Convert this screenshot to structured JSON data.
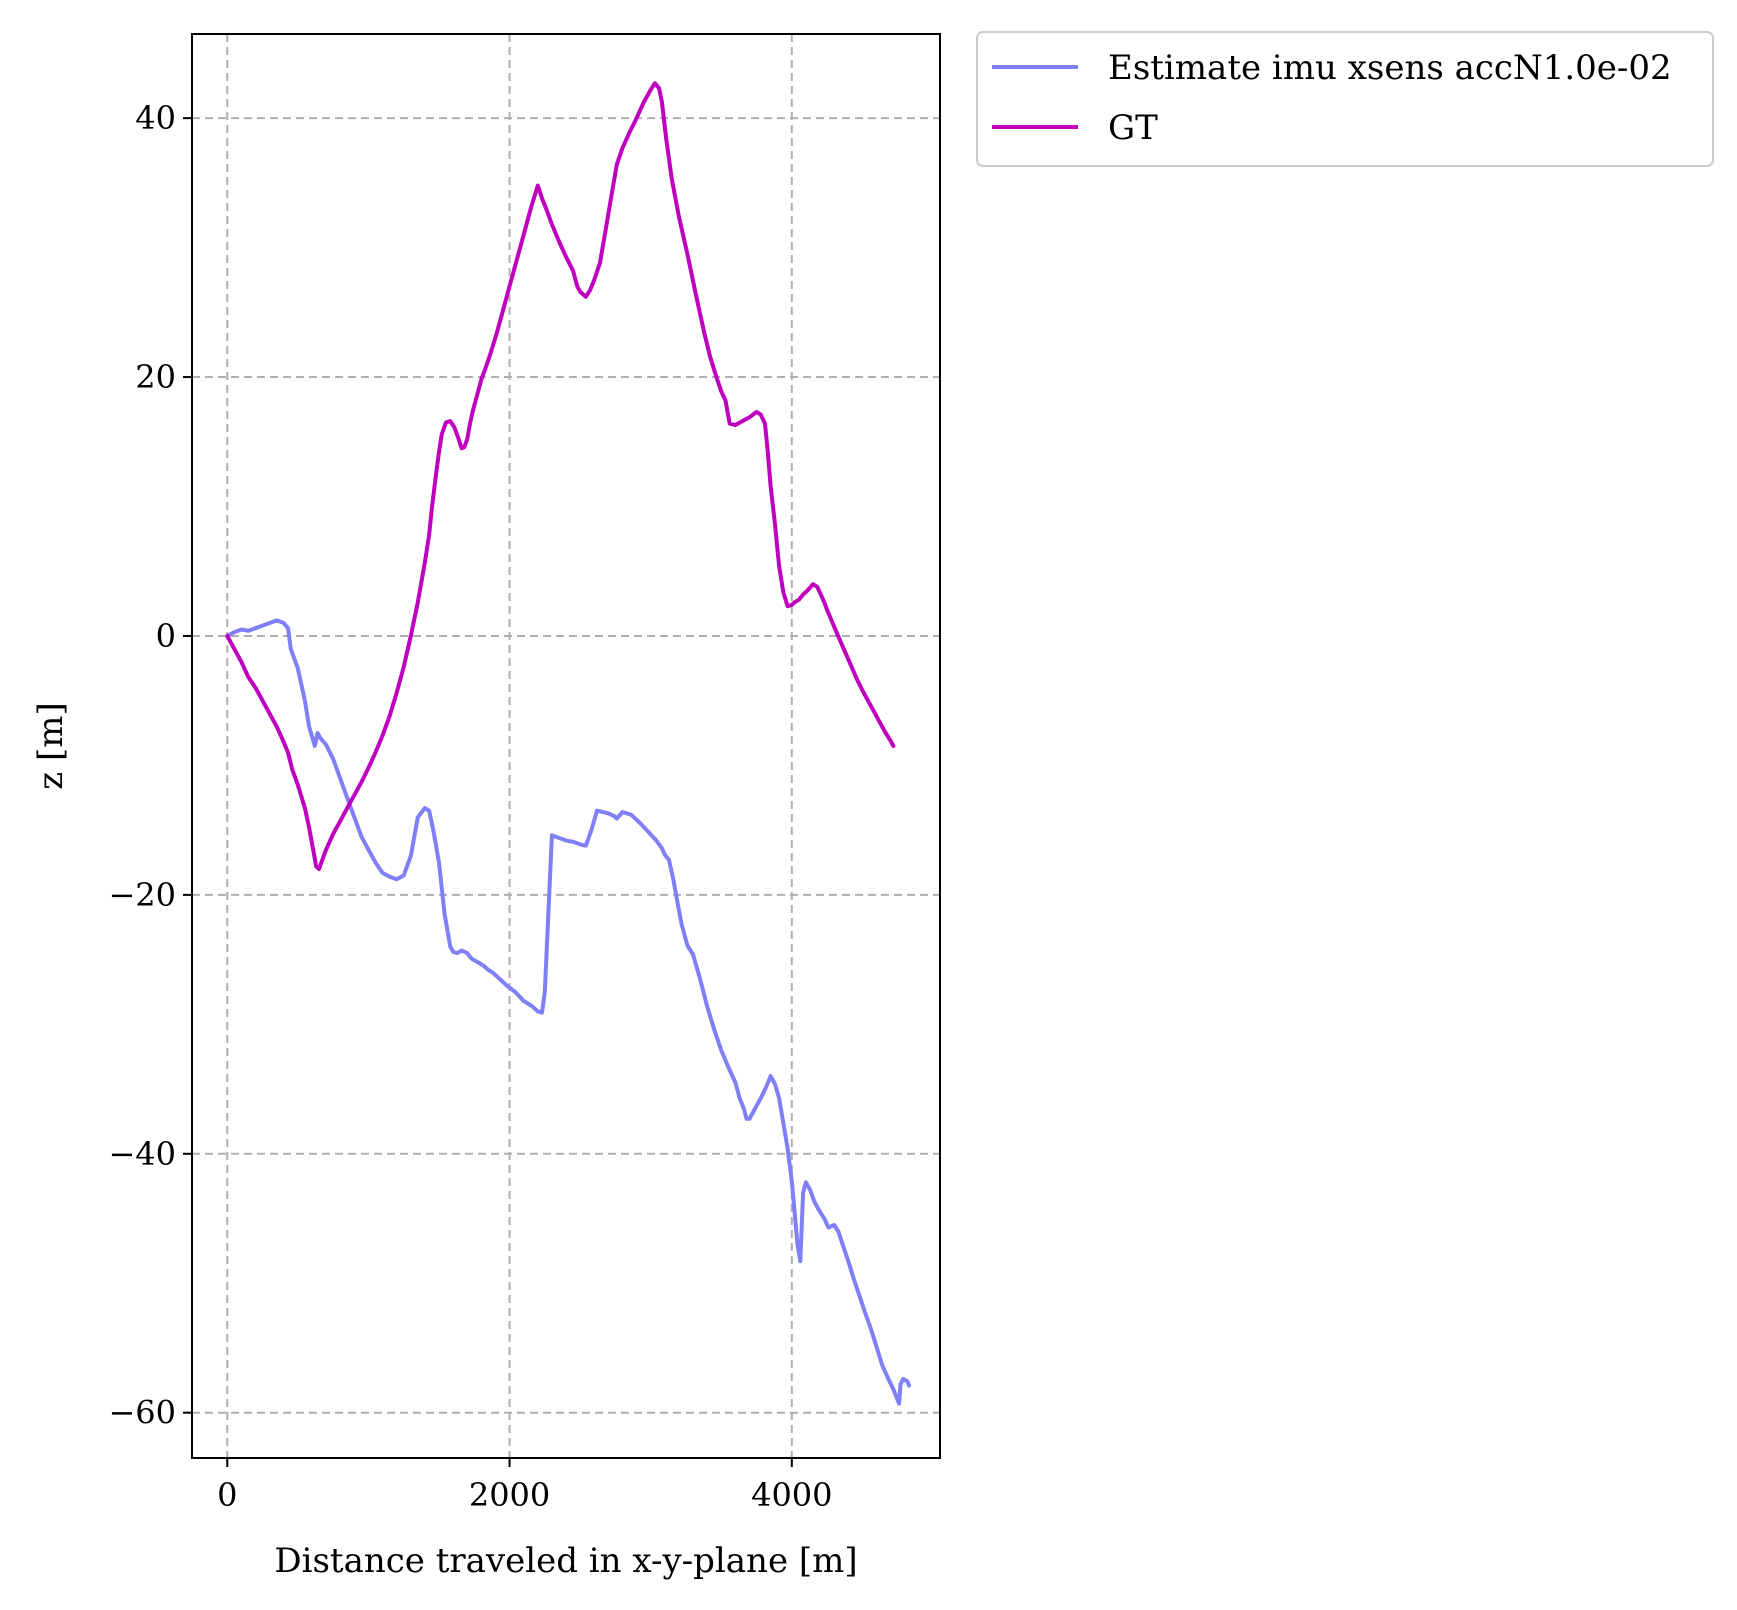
{
  "chart_data": {
    "type": "line",
    "title": "",
    "xlabel": "Distance traveled in x-y-plane [m]",
    "ylabel": "z [m]",
    "xlim": [
      -250,
      5050
    ],
    "ylim": [
      -63.5,
      46.5
    ],
    "xticks": [
      0,
      2000,
      4000
    ],
    "yticks": [
      40,
      20,
      0,
      -20,
      -40,
      -60
    ],
    "xtick_labels": [
      "0",
      "2000",
      "4000"
    ],
    "ytick_labels": [
      "40",
      "20",
      "0",
      "−20",
      "−40",
      "−60"
    ],
    "grid": true,
    "legend_position": "outside-top-right",
    "series": [
      {
        "name": "Estimate imu xsens accN1.0e-02",
        "color": "#7f7ff7",
        "x": [
          0,
          50,
          100,
          150,
          200,
          250,
          300,
          350,
          400,
          430,
          450,
          500,
          550,
          580,
          620,
          640,
          660,
          700,
          750,
          800,
          850,
          900,
          950,
          1000,
          1050,
          1100,
          1150,
          1200,
          1250,
          1300,
          1350,
          1400,
          1430,
          1460,
          1500,
          1540,
          1580,
          1600,
          1630,
          1660,
          1680,
          1700,
          1720,
          1740,
          1760,
          1790,
          1820,
          1850,
          1880,
          1920,
          1980,
          2040,
          2100,
          2160,
          2200,
          2230,
          2250,
          2300,
          2350,
          2400,
          2450,
          2500,
          2540,
          2560,
          2580,
          2620,
          2660,
          2700,
          2740,
          2760,
          2800,
          2860,
          2920,
          2980,
          3040,
          3080,
          3100,
          3130,
          3160,
          3190,
          3220,
          3260,
          3300,
          3350,
          3400,
          3450,
          3500,
          3550,
          3600,
          3630,
          3660,
          3680,
          3700,
          3740,
          3780,
          3820,
          3850,
          3880,
          3910,
          3940,
          3970,
          4000,
          4020,
          4040,
          4060,
          4080,
          4100,
          4130,
          4160,
          4190,
          4230,
          4260,
          4300,
          4330,
          4360,
          4400,
          4440,
          4480,
          4520,
          4560,
          4600,
          4640,
          4680,
          4720,
          4760,
          4770,
          4790,
          4820,
          4830
        ],
        "y": [
          0,
          0.3,
          0.5,
          0.4,
          0.6,
          0.8,
          1.0,
          1.2,
          1.0,
          0.6,
          -1.0,
          -2.5,
          -5.0,
          -7.0,
          -8.5,
          -7.5,
          -7.9,
          -8.4,
          -9.5,
          -11.0,
          -12.5,
          -14.0,
          -15.5,
          -16.5,
          -17.5,
          -18.3,
          -18.6,
          -18.8,
          -18.5,
          -17.0,
          -14.0,
          -13.3,
          -13.5,
          -15.0,
          -17.5,
          -21.5,
          -24.0,
          -24.4,
          -24.5,
          -24.3,
          -24.4,
          -24.5,
          -24.8,
          -25.0,
          -25.1,
          -25.3,
          -25.5,
          -25.8,
          -26.0,
          -26.4,
          -27.0,
          -27.5,
          -28.2,
          -28.6,
          -29.0,
          -29.1,
          -27.5,
          -15.4,
          -15.6,
          -15.8,
          -15.9,
          -16.1,
          -16.2,
          -15.6,
          -15.0,
          -13.5,
          -13.6,
          -13.7,
          -13.9,
          -14.1,
          -13.6,
          -13.8,
          -14.4,
          -15.1,
          -15.8,
          -16.4,
          -16.9,
          -17.3,
          -18.8,
          -20.6,
          -22.3,
          -23.9,
          -24.6,
          -26.5,
          -28.6,
          -30.4,
          -32.0,
          -33.3,
          -34.5,
          -35.7,
          -36.5,
          -37.3,
          -37.3,
          -36.5,
          -35.7,
          -34.8,
          -34.0,
          -34.6,
          -35.7,
          -37.6,
          -39.6,
          -42.1,
          -44.5,
          -47.0,
          -48.3,
          -43.0,
          -42.2,
          -42.8,
          -43.7,
          -44.3,
          -45.0,
          -45.7,
          -45.5,
          -46.0,
          -47.0,
          -48.3,
          -49.7,
          -51.0,
          -52.3,
          -53.5,
          -54.9,
          -56.3,
          -57.3,
          -58.2,
          -59.3,
          -57.8,
          -57.4,
          -57.6,
          -57.9
        ],
        "y_note": ""
      },
      {
        "name": "GT",
        "color": "#bf00bf",
        "x": [
          0,
          50,
          100,
          150,
          200,
          250,
          300,
          350,
          400,
          430,
          460,
          500,
          550,
          580,
          610,
          630,
          650,
          700,
          750,
          800,
          850,
          900,
          950,
          1000,
          1050,
          1100,
          1150,
          1200,
          1250,
          1300,
          1350,
          1400,
          1430,
          1450,
          1480,
          1500,
          1520,
          1550,
          1580,
          1610,
          1640,
          1660,
          1680,
          1700,
          1720,
          1740,
          1760,
          1780,
          1800,
          1830,
          1870,
          1910,
          1950,
          2000,
          2050,
          2100,
          2150,
          2200,
          2230,
          2260,
          2300,
          2350,
          2400,
          2450,
          2480,
          2500,
          2520,
          2540,
          2570,
          2600,
          2640,
          2680,
          2720,
          2760,
          2800,
          2850,
          2900,
          2950,
          3000,
          3030,
          3060,
          3080,
          3110,
          3150,
          3200,
          3260,
          3320,
          3380,
          3420,
          3460,
          3500,
          3530,
          3560,
          3600,
          3650,
          3700,
          3750,
          3780,
          3810,
          3830,
          3850,
          3880,
          3910,
          3940,
          3970,
          4000,
          4020,
          4050,
          4080,
          4110,
          4150,
          4180,
          4210,
          4230,
          4250,
          4270,
          4300,
          4340,
          4380,
          4420,
          4460,
          4500,
          4540,
          4580,
          4620,
          4660,
          4700,
          4720
        ],
        "y": [
          0,
          -1.0,
          -2.0,
          -3.2,
          -4.0,
          -5.0,
          -6.0,
          -7.0,
          -8.2,
          -9.0,
          -10.3,
          -11.5,
          -13.3,
          -14.8,
          -16.6,
          -17.8,
          -18.0,
          -16.5,
          -15.3,
          -14.3,
          -13.3,
          -12.3,
          -11.3,
          -10.2,
          -9.0,
          -7.7,
          -6.2,
          -4.4,
          -2.4,
          0.0,
          2.6,
          5.7,
          7.8,
          9.9,
          12.6,
          14.2,
          15.6,
          16.5,
          16.6,
          16.1,
          15.2,
          14.5,
          14.6,
          15.2,
          16.4,
          17.4,
          18.2,
          19.0,
          19.8,
          20.7,
          22.0,
          23.4,
          25.0,
          27.0,
          29.0,
          31.0,
          33.0,
          34.8,
          33.8,
          33.0,
          31.8,
          30.5,
          29.3,
          28.2,
          27.0,
          26.6,
          26.4,
          26.2,
          26.7,
          27.5,
          28.8,
          31.3,
          33.9,
          36.4,
          37.7,
          38.9,
          40.0,
          41.2,
          42.2,
          42.7,
          42.3,
          41.2,
          38.4,
          35.3,
          32.4,
          29.5,
          26.4,
          23.4,
          21.6,
          20.2,
          18.9,
          18.2,
          16.4,
          16.3,
          16.6,
          16.9,
          17.3,
          17.1,
          16.4,
          14.2,
          11.6,
          8.7,
          5.4,
          3.4,
          2.3,
          2.4,
          2.6,
          2.8,
          3.2,
          3.5,
          4.0,
          3.8,
          3.1,
          2.6,
          2.0,
          1.5,
          0.7,
          -0.3,
          -1.3,
          -2.3,
          -3.3,
          -4.2,
          -5.0,
          -5.8,
          -6.6,
          -7.4,
          -8.1,
          -8.5
        ],
        "y_note": ""
      }
    ]
  }
}
